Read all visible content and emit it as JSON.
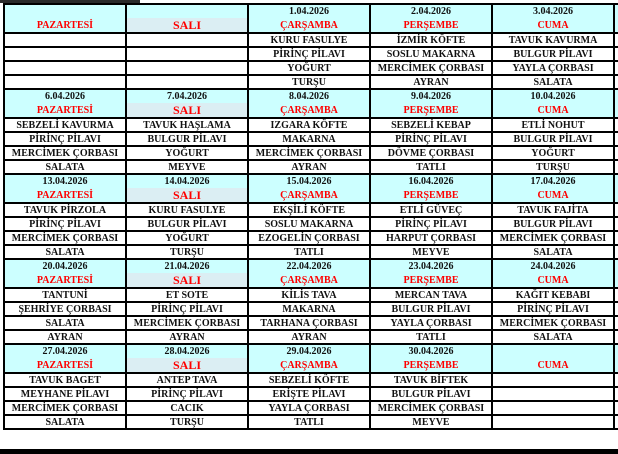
{
  "colors": {
    "header_bg": "#ccffff",
    "tuesday_bg": "#dbeef3",
    "day_text": "#ff0000",
    "border": "#000000"
  },
  "weeks": [
    {
      "days": [
        {
          "date": "",
          "day": "PAZARTESİ",
          "meals": [
            "",
            "",
            "",
            ""
          ]
        },
        {
          "date": "",
          "day": "SALI",
          "meals": [
            "",
            "",
            "",
            ""
          ]
        },
        {
          "date": "1.04.2026",
          "day": "ÇARŞAMBA",
          "meals": [
            "KURU FASULYE",
            "PİRİNÇ PİLAVI",
            "YOĞURT",
            "TURŞU"
          ]
        },
        {
          "date": "2.04.2026",
          "day": "PERŞEMBE",
          "meals": [
            "İZMİR KÖFTE",
            "SOSLU MAKARNA",
            "MERCİMEK ÇORBASI",
            "AYRAN"
          ]
        },
        {
          "date": "3.04.2026",
          "day": "CUMA",
          "meals": [
            "TAVUK KAVURMA",
            "BULGUR PİLAVI",
            "YAYLA ÇORBASI",
            "SALATA"
          ]
        }
      ]
    },
    {
      "days": [
        {
          "date": "6.04.2026",
          "day": "PAZARTESİ",
          "meals": [
            "SEBZELİ KAVURMA",
            "PİRİNÇ PİLAVI",
            "MERCİMEK ÇORBASI",
            "SALATA"
          ]
        },
        {
          "date": "7.04.2026",
          "day": "SALI",
          "meals": [
            "TAVUK HAŞLAMA",
            "BULGUR PİLAVI",
            "YOĞURT",
            "MEYVE"
          ]
        },
        {
          "date": "8.04.2026",
          "day": "ÇARŞAMBA",
          "meals": [
            "IZGARA KÖFTE",
            "MAKARNA",
            "MERCİMEK ÇORBASI",
            "AYRAN"
          ]
        },
        {
          "date": "9.04.2026",
          "day": "PERŞEMBE",
          "meals": [
            "SEBZELİ KEBAP",
            "PİRİNÇ PİLAVI",
            "DÖVME ÇORBASI",
            "TATLI"
          ]
        },
        {
          "date": "10.04.2026",
          "day": "CUMA",
          "meals": [
            "ETLİ NOHUT",
            "BULGUR PİLAVI",
            "YOĞURT",
            "TURŞU"
          ]
        }
      ]
    },
    {
      "days": [
        {
          "date": "13.04.2026",
          "day": "PAZARTESİ",
          "meals": [
            "TAVUK PİRZOLA",
            "PİRİNÇ PİLAVI",
            "MERCİMEK ÇORBASI",
            "SALATA"
          ]
        },
        {
          "date": "14.04.2026",
          "day": "SALI",
          "meals": [
            "KURU FASULYE",
            "BULGUR PİLAVI",
            "YOĞURT",
            "TURŞU"
          ]
        },
        {
          "date": "15.04.2026",
          "day": "ÇARŞAMBA",
          "meals": [
            "EKŞİLİ KÖFTE",
            "SOSLU MAKARNA",
            "EZOGELİN ÇORBASI",
            "TATLI"
          ]
        },
        {
          "date": "16.04.2026",
          "day": "PERŞEMBE",
          "meals": [
            "ETLİ GÜVEÇ",
            "PİRİNÇ PİLAVI",
            "HARPUT ÇORBASI",
            "MEYVE"
          ]
        },
        {
          "date": "17.04.2026",
          "day": "CUMA",
          "meals": [
            "TAVUK FAJİTA",
            "BULGUR PİLAVI",
            "MERCİMEK ÇORBASI",
            "SALATA"
          ]
        }
      ]
    },
    {
      "days": [
        {
          "date": "20.04.2026",
          "day": "PAZARTESİ",
          "meals": [
            "TANTUNİ",
            "ŞEHRİYE ÇORBASI",
            "SALATA",
            "AYRAN"
          ]
        },
        {
          "date": "21.04.2026",
          "day": "SALI",
          "meals": [
            "ET SOTE",
            "PİRİNÇ PİLAVI",
            "MERCİMEK ÇORBASI",
            "AYRAN"
          ]
        },
        {
          "date": "22.04.2026",
          "day": "ÇARŞAMBA",
          "meals": [
            "KİLİS TAVA",
            "MAKARNA",
            "TARHANA ÇORBASI",
            "AYRAN"
          ]
        },
        {
          "date": "23.04.2026",
          "day": "PERŞEMBE",
          "meals": [
            "MERCAN TAVA",
            "BULGUR PİLAVI",
            "YAYLA ÇORBASI",
            "TATLI"
          ]
        },
        {
          "date": "24.04.2026",
          "day": "CUMA",
          "meals": [
            "KAĞIT KEBABI",
            "PİRİNÇ PİLAVI",
            "MERCİMEK ÇORBASI",
            "SALATA"
          ]
        }
      ]
    },
    {
      "days": [
        {
          "date": "27.04.2026",
          "day": "PAZARTESİ",
          "meals": [
            "TAVUK BAGET",
            "MEYHANE PİLAVI",
            "MERCİMEK ÇORBASI",
            "SALATA"
          ]
        },
        {
          "date": "28.04.2026",
          "day": "SALI",
          "meals": [
            "ANTEP TAVA",
            "PİRİNÇ PİLAVI",
            "CACIK",
            "TURŞU"
          ]
        },
        {
          "date": "29.04.2026",
          "day": "ÇARŞAMBA",
          "meals": [
            "SEBZELİ KÖFTE",
            "ERİŞTE PİLAVI",
            "YAYLA ÇORBASI",
            "TATLI"
          ]
        },
        {
          "date": "30.04.2026",
          "day": "PERŞEMBE",
          "meals": [
            "TAVUK BİFTEK",
            "BULGUR PİLAVI",
            "MERCİMEK ÇORBASI",
            "MEYVE"
          ]
        },
        {
          "date": "",
          "day": "CUMA",
          "meals": [
            "",
            "",
            "",
            ""
          ]
        }
      ]
    }
  ]
}
